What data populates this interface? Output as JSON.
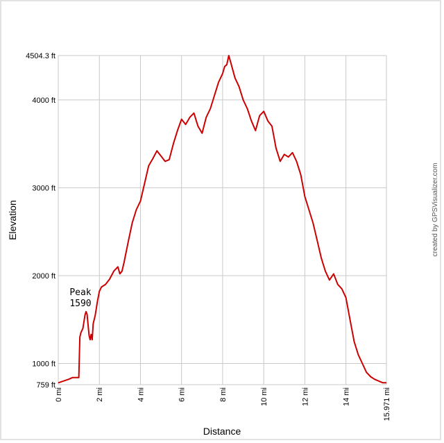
{
  "chart_data": {
    "type": "line",
    "title": "",
    "xlabel": "Distance",
    "ylabel": "Elevation",
    "xlim": [
      0,
      15.971
    ],
    "ylim": [
      759,
      4504.3
    ],
    "x_ticks": [
      {
        "value": 0,
        "label": "0 mi"
      },
      {
        "value": 2,
        "label": "2 mi"
      },
      {
        "value": 4,
        "label": "4 mi"
      },
      {
        "value": 6,
        "label": "6 mi"
      },
      {
        "value": 8,
        "label": "8 mi"
      },
      {
        "value": 10,
        "label": "10 mi"
      },
      {
        "value": 12,
        "label": "12 mi"
      },
      {
        "value": 14,
        "label": "14 mi"
      },
      {
        "value": 15.971,
        "label": "15.971 mi"
      }
    ],
    "y_ticks": [
      {
        "value": 759,
        "label": "759 ft"
      },
      {
        "value": 1000,
        "label": "1000 ft"
      },
      {
        "value": 2000,
        "label": "2000 ft"
      },
      {
        "value": 3000,
        "label": "3000 ft"
      },
      {
        "value": 4000,
        "label": "4000 ft"
      },
      {
        "value": 4504.3,
        "label": "4504.3 ft"
      }
    ],
    "grid": true,
    "line_color": "#cc0000",
    "grid_color": "#c8c8c8",
    "annotations": [
      {
        "line1": "Peak",
        "line2": "1590",
        "x": 1.35,
        "y": 1590
      }
    ],
    "credit": "created by GPSVisualizer.com",
    "series": [
      {
        "x": [
          0,
          0.25,
          0.5,
          0.7,
          0.8,
          0.9,
          1.0,
          1.05,
          1.1,
          1.2,
          1.3,
          1.35,
          1.4,
          1.5,
          1.55,
          1.6,
          1.65,
          1.7,
          1.8,
          1.9,
          2.0,
          2.1,
          2.3,
          2.5,
          2.7,
          2.9,
          3.0,
          3.1,
          3.2,
          3.4,
          3.6,
          3.8,
          4.0,
          4.2,
          4.4,
          4.6,
          4.8,
          5.0,
          5.2,
          5.4,
          5.6,
          5.8,
          6.0,
          6.2,
          6.4,
          6.6,
          6.8,
          7.0,
          7.2,
          7.4,
          7.6,
          7.8,
          8.0,
          8.1,
          8.2,
          8.3,
          8.4,
          8.6,
          8.8,
          9.0,
          9.2,
          9.4,
          9.6,
          9.8,
          10.0,
          10.2,
          10.4,
          10.6,
          10.8,
          11.0,
          11.2,
          11.4,
          11.6,
          11.8,
          12.0,
          12.2,
          12.4,
          12.6,
          12.8,
          13.0,
          13.2,
          13.4,
          13.6,
          13.8,
          14.0,
          14.2,
          14.4,
          14.6,
          14.8,
          15.0,
          15.2,
          15.4,
          15.6,
          15.8,
          15.971
        ],
        "y": [
          780,
          800,
          820,
          840,
          840,
          840,
          840,
          1300,
          1350,
          1400,
          1550,
          1590,
          1560,
          1320,
          1270,
          1330,
          1270,
          1450,
          1550,
          1700,
          1820,
          1870,
          1900,
          1960,
          2050,
          2100,
          2020,
          2050,
          2150,
          2380,
          2600,
          2750,
          2850,
          3050,
          3250,
          3330,
          3420,
          3360,
          3300,
          3320,
          3500,
          3650,
          3780,
          3720,
          3800,
          3850,
          3700,
          3620,
          3800,
          3900,
          4050,
          4200,
          4300,
          4380,
          4400,
          4504.3,
          4420,
          4250,
          4150,
          4000,
          3900,
          3760,
          3650,
          3820,
          3870,
          3760,
          3700,
          3450,
          3300,
          3380,
          3350,
          3400,
          3300,
          3150,
          2900,
          2750,
          2600,
          2400,
          2200,
          2050,
          1950,
          2020,
          1900,
          1850,
          1750,
          1500,
          1250,
          1100,
          1000,
          900,
          850,
          820,
          800,
          780,
          780
        ]
      }
    ]
  }
}
